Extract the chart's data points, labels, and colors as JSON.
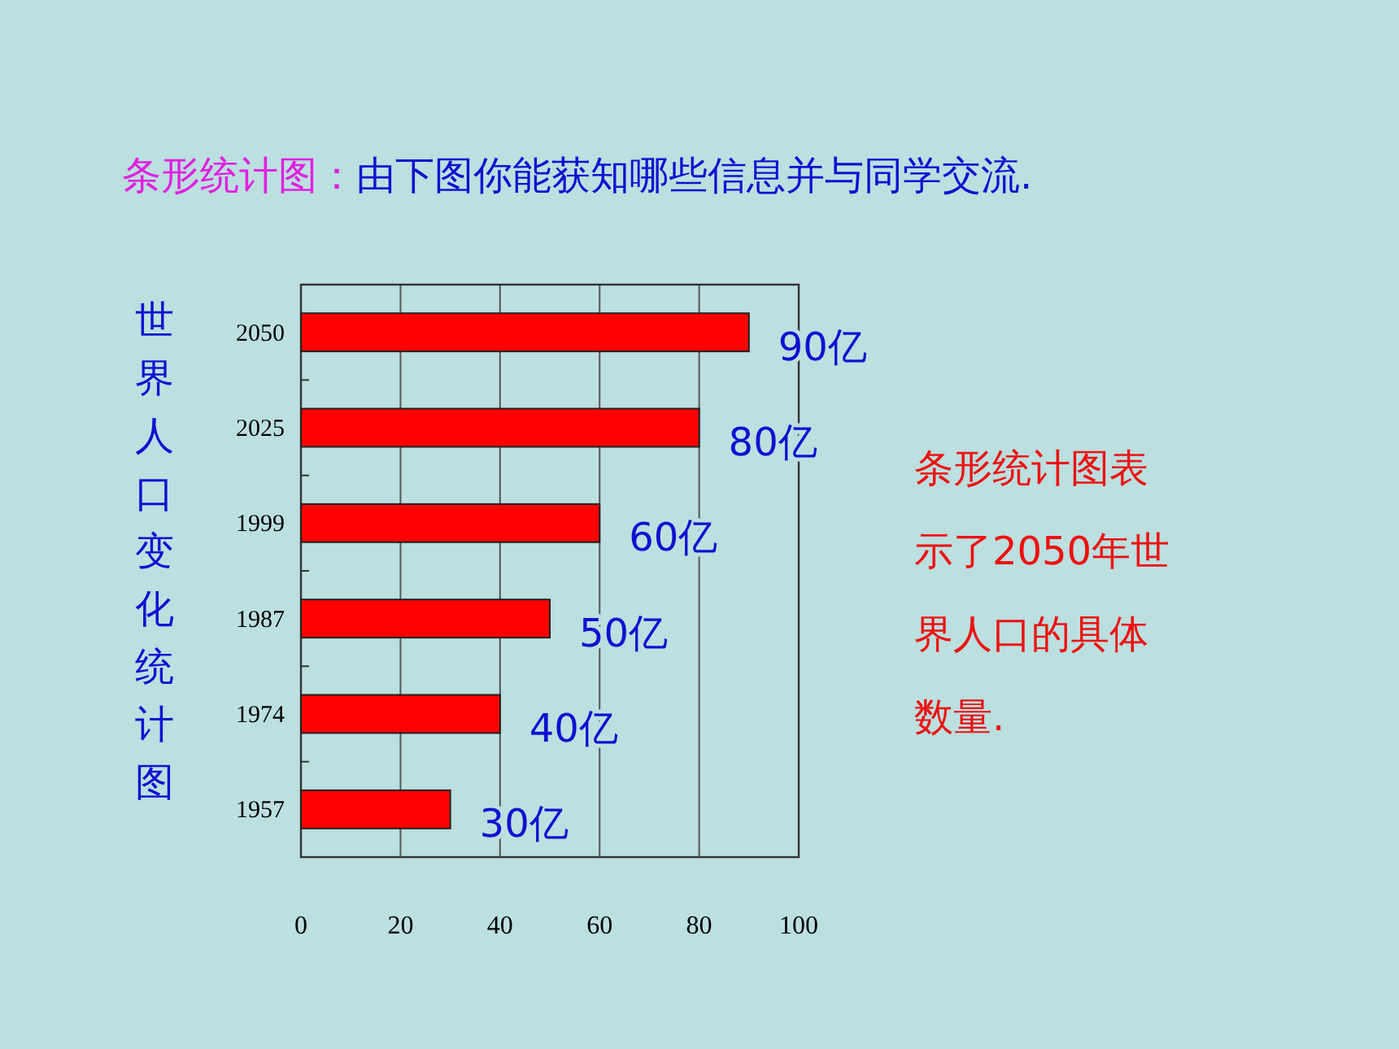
{
  "chart_data": {
    "type": "bar",
    "orientation": "horizontal",
    "title": "条形统计图：",
    "subtitle": "由下图你能获知哪些信息并与同学交流.",
    "ylabel": "世界人口变化统计图",
    "categories": [
      "2050",
      "2025",
      "1999",
      "1987",
      "1974",
      "1957"
    ],
    "values": [
      90,
      80,
      60,
      50,
      40,
      30
    ],
    "value_labels": [
      "90亿",
      "80亿",
      "60亿",
      "50亿",
      "40亿",
      "30亿"
    ],
    "color": "#ff0000",
    "xlim": [
      0,
      100
    ],
    "xticks": [
      0,
      20,
      40,
      60,
      80,
      100
    ],
    "grid": "x",
    "annotations": [
      "条形统计图表示了2050年世界人口的具体数量."
    ]
  }
}
